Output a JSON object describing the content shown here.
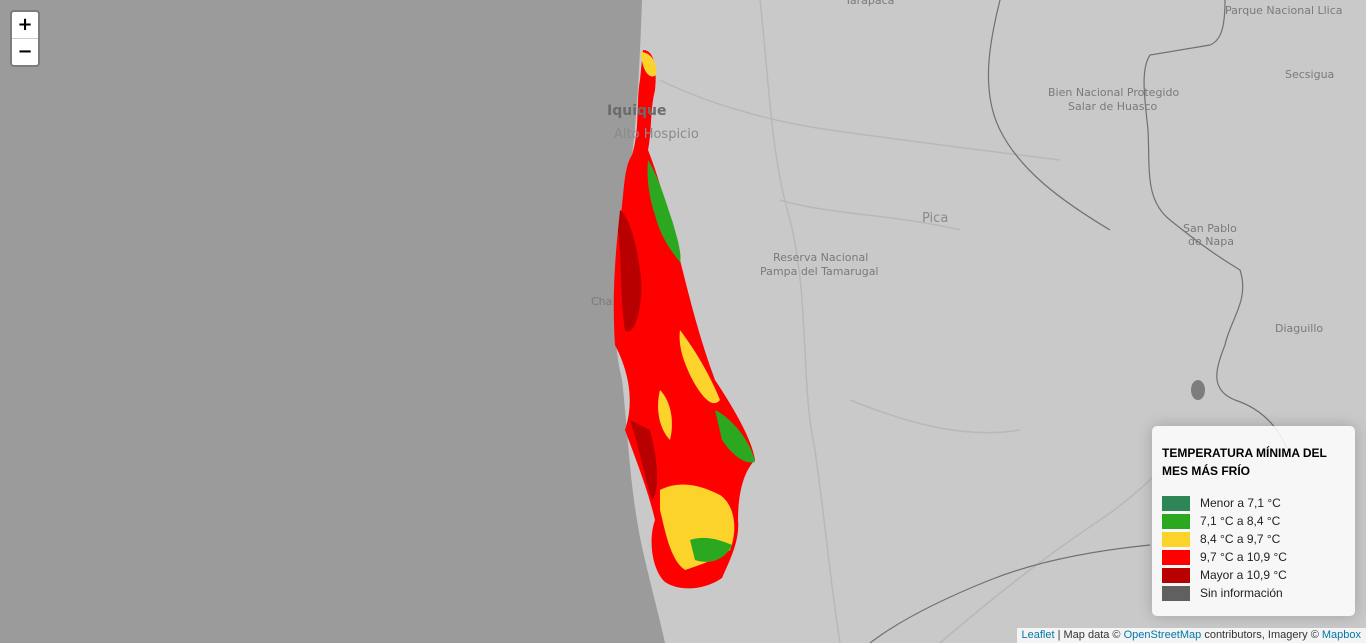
{
  "zoom": {
    "in_label": "+",
    "out_label": "−"
  },
  "places": {
    "tarapaca": "Tarapacá",
    "parque": "Parque Nacional Llica",
    "secsigua": "Secsigua",
    "huasco_1": "Bien Nacional Protegido",
    "huasco_2": "Salar de Huasco",
    "iquique": "Iquique",
    "alto_hospicio": "Alto Hospicio",
    "pica": "Pica",
    "reserva_1": "Reserva Nacional",
    "reserva_2": "Pampa del Tamarugal",
    "san_pablo_1": "San Pablo",
    "san_pablo_2": "de Napa",
    "diaguillo": "Diaguillo",
    "chanavayita": "Cha"
  },
  "legend": {
    "title": "TEMPERATURA MÍNIMA DEL MES MÁS FRÍO",
    "items": [
      {
        "label": "Menor a 7,1 °C",
        "color": "#2e8557"
      },
      {
        "label": "7,1 °C a 8,4 °C",
        "color": "#2ca820"
      },
      {
        "label": "8,4 °C a 9,7 °C",
        "color": "#fcd32a"
      },
      {
        "label": "9,7 °C a 10,9 °C",
        "color": "#fe0000"
      },
      {
        "label": "Mayor a 10,9 °C",
        "color": "#b80000"
      },
      {
        "label": "Sin información",
        "color": "#606060"
      }
    ]
  },
  "attribution": {
    "leaflet": "Leaflet",
    "sep1": " | Map data © ",
    "osm": "OpenStreetMap",
    "mid": " contributors, Imagery © ",
    "mapbox": "Mapbox"
  }
}
